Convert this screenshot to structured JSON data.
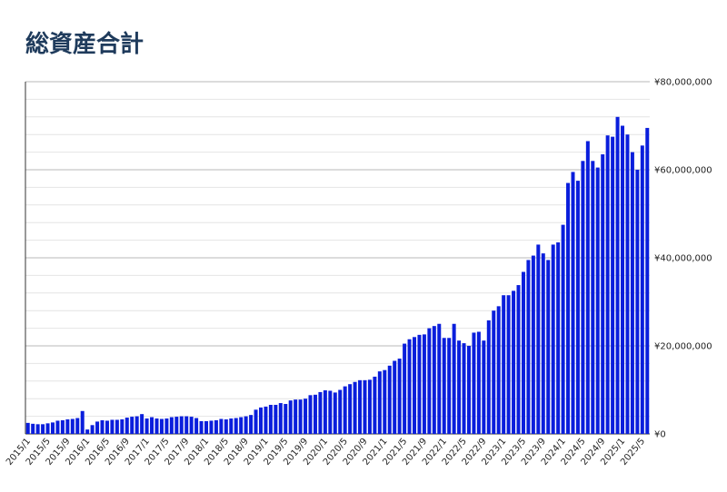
{
  "chart_data": {
    "type": "bar",
    "title": "総資産合計",
    "color": "#0a1edc",
    "categories": [
      "2015/1",
      null,
      null,
      null,
      "2015/5",
      null,
      null,
      null,
      "2015/9",
      null,
      null,
      null,
      "2016/1",
      null,
      null,
      null,
      "2016/5",
      null,
      null,
      null,
      "2016/9",
      null,
      null,
      null,
      "2017/1",
      null,
      null,
      null,
      "2017/5",
      null,
      null,
      null,
      "2017/9",
      null,
      null,
      null,
      "2018/1",
      null,
      null,
      null,
      "2018/5",
      null,
      null,
      null,
      "2018/9",
      null,
      null,
      null,
      "2019/1",
      null,
      null,
      null,
      "2019/5",
      null,
      null,
      null,
      "2019/9",
      null,
      null,
      null,
      "2020/1",
      null,
      null,
      null,
      "2020/5",
      null,
      null,
      null,
      "2020/9",
      null,
      null,
      null,
      "2021/1",
      null,
      null,
      null,
      "2021/5",
      null,
      null,
      null,
      "2021/9",
      null,
      null,
      null,
      "2022/1",
      null,
      null,
      null,
      "2022/5",
      null,
      null,
      null,
      "2022/9",
      null,
      null,
      null,
      "2023/1",
      null,
      null,
      null,
      "2023/5",
      null,
      null,
      null,
      "2023/9",
      null,
      null,
      null,
      "2024/1",
      null,
      null,
      null,
      "2024/5",
      null,
      null,
      null,
      "2024/9",
      null,
      null,
      null,
      "2025/1",
      null,
      null,
      null,
      "2025/5",
      null
    ],
    "values": [
      2500000,
      2300000,
      2200000,
      2200000,
      2400000,
      2600000,
      3000000,
      3100000,
      3300000,
      3400000,
      3600000,
      5200000,
      1000000,
      2000000,
      2800000,
      3100000,
      3000000,
      3200000,
      3200000,
      3300000,
      3700000,
      3900000,
      4000000,
      4500000,
      3500000,
      3800000,
      3500000,
      3400000,
      3500000,
      3800000,
      3900000,
      4000000,
      4000000,
      3900000,
      3600000,
      2900000,
      2900000,
      3000000,
      3100000,
      3400000,
      3300000,
      3500000,
      3600000,
      3800000,
      4000000,
      4300000,
      5500000,
      6000000,
      6200000,
      6600000,
      6600000,
      7000000,
      6800000,
      7600000,
      7800000,
      7800000,
      8000000,
      8800000,
      8900000,
      9500000,
      9900000,
      9800000,
      9400000,
      10000000,
      10800000,
      11300000,
      11800000,
      12200000,
      12200000,
      12300000,
      13000000,
      14200000,
      14500000,
      15500000,
      16600000,
      17100000,
      20500000,
      21500000,
      22000000,
      22500000,
      22600000,
      24000000,
      24500000,
      25000000,
      21800000,
      21800000,
      25000000,
      21200000,
      20600000,
      20000000,
      23000000,
      23200000,
      21200000,
      25800000,
      28000000,
      29000000,
      31500000,
      31500000,
      32500000,
      33800000,
      36800000,
      39500000,
      40500000,
      43000000,
      41000000,
      39500000,
      43000000,
      43500000,
      47500000,
      57000000,
      59500000,
      57500000,
      62000000,
      66500000,
      62000000,
      60500000,
      63500000,
      67800000,
      67500000,
      72000000,
      70000000,
      68000000,
      64000000,
      60000000,
      65500000,
      69500000
    ],
    "ylim": [
      0,
      80000000
    ],
    "yticks": [
      {
        "value": 0,
        "label": "¥0"
      },
      {
        "value": 20000000,
        "label": "¥20,000,000"
      },
      {
        "value": 40000000,
        "label": "¥40,000,000"
      },
      {
        "value": 60000000,
        "label": "¥60,000,000"
      },
      {
        "value": 80000000,
        "label": "¥80,000,000"
      }
    ],
    "minor_grid": [
      4000000,
      8000000,
      12000000,
      16000000,
      24000000,
      28000000,
      32000000,
      36000000,
      44000000,
      48000000,
      52000000,
      56000000,
      64000000,
      68000000,
      72000000,
      76000000
    ],
    "grid": true
  }
}
